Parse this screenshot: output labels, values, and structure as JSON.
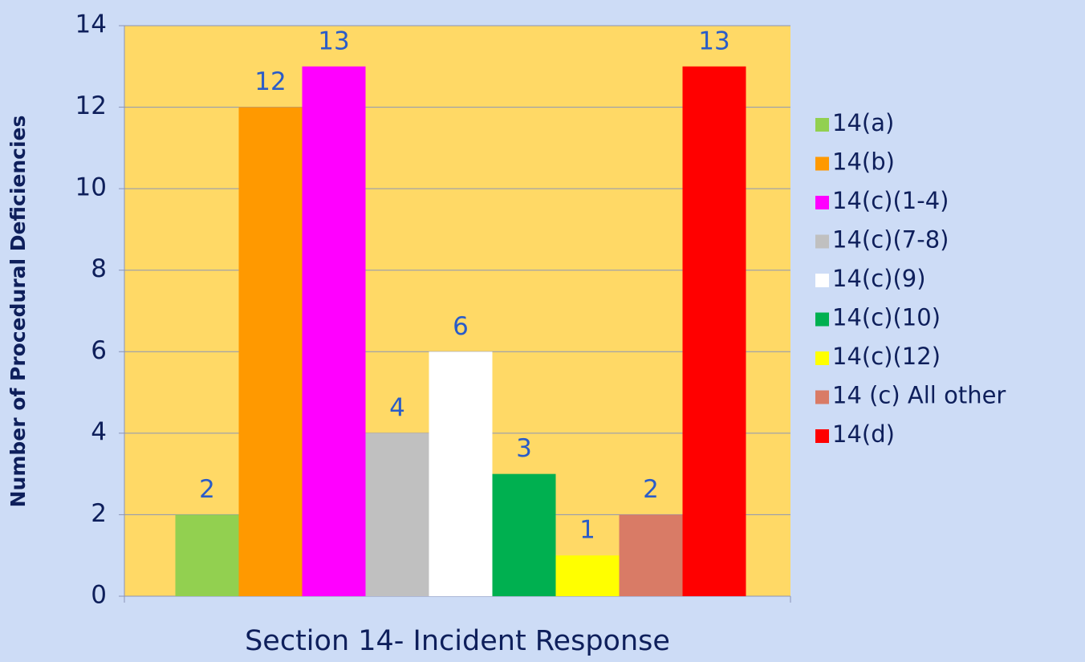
{
  "chart_data": {
    "type": "bar",
    "x_label": "Section 14- Incident Response",
    "y_label": "Number of Procedural Deficiencies",
    "categories": [
      "Section 14- Incident Response"
    ],
    "series": [
      {
        "name": "14(a)",
        "color": "#92d050",
        "values": [
          2
        ]
      },
      {
        "name": "14(b)",
        "color": "#ff9900",
        "values": [
          12
        ]
      },
      {
        "name": "14(c)(1-4)",
        "color": "#ff00ff",
        "values": [
          13
        ]
      },
      {
        "name": "14(c)(7-8)",
        "color": "#c0c0c0",
        "values": [
          4
        ]
      },
      {
        "name": "14(c)(9)",
        "color": "#ffffff",
        "values": [
          6
        ]
      },
      {
        "name": "14(c)(10)",
        "color": "#00b050",
        "values": [
          3
        ]
      },
      {
        "name": "14(c)(12)",
        "color": "#ffff00",
        "values": [
          1
        ]
      },
      {
        "name": "14 (c) All other",
        "color": "#d97b66",
        "values": [
          2
        ]
      },
      {
        "name": "14(d)",
        "color": "#ff0000",
        "values": [
          13
        ]
      }
    ],
    "ylim": [
      0,
      14
    ],
    "yticks": [
      0,
      2,
      4,
      6,
      8,
      10,
      12,
      14
    ],
    "grid": true,
    "legend": "right",
    "plot_background": "#ffd966"
  }
}
